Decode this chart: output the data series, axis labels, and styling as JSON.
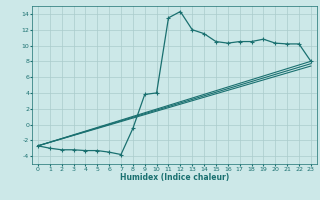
{
  "xlabel": "Humidex (Indice chaleur)",
  "bg_color": "#cce8e8",
  "grid_color": "#aacccc",
  "line_color": "#1a7070",
  "xlim": [
    -0.5,
    23.5
  ],
  "ylim": [
    -5.0,
    15.0
  ],
  "xticks": [
    0,
    1,
    2,
    3,
    4,
    5,
    6,
    7,
    8,
    9,
    10,
    11,
    12,
    13,
    14,
    15,
    16,
    17,
    18,
    19,
    20,
    21,
    22,
    23
  ],
  "yticks": [
    -4,
    -2,
    0,
    2,
    4,
    6,
    8,
    10,
    12,
    14
  ],
  "line1_x": [
    0,
    1,
    2,
    3,
    4,
    5,
    6,
    7,
    8,
    9,
    10,
    11,
    12,
    13,
    14,
    15,
    16,
    17,
    18,
    19,
    20,
    21,
    22,
    23
  ],
  "line1_y": [
    -2.7,
    -3.0,
    -3.2,
    -3.2,
    -3.3,
    -3.3,
    -3.5,
    -3.8,
    -0.5,
    3.8,
    4.0,
    13.5,
    14.3,
    12.0,
    11.5,
    10.5,
    10.3,
    10.5,
    10.5,
    10.8,
    10.3,
    10.2,
    10.2,
    8.0
  ],
  "line2_x": [
    0,
    23
  ],
  "line2_y": [
    -2.7,
    8.0
  ],
  "line3_x": [
    0,
    23
  ],
  "line3_y": [
    -2.7,
    7.7
  ],
  "line4_x": [
    0,
    23
  ],
  "line4_y": [
    -2.7,
    7.4
  ]
}
